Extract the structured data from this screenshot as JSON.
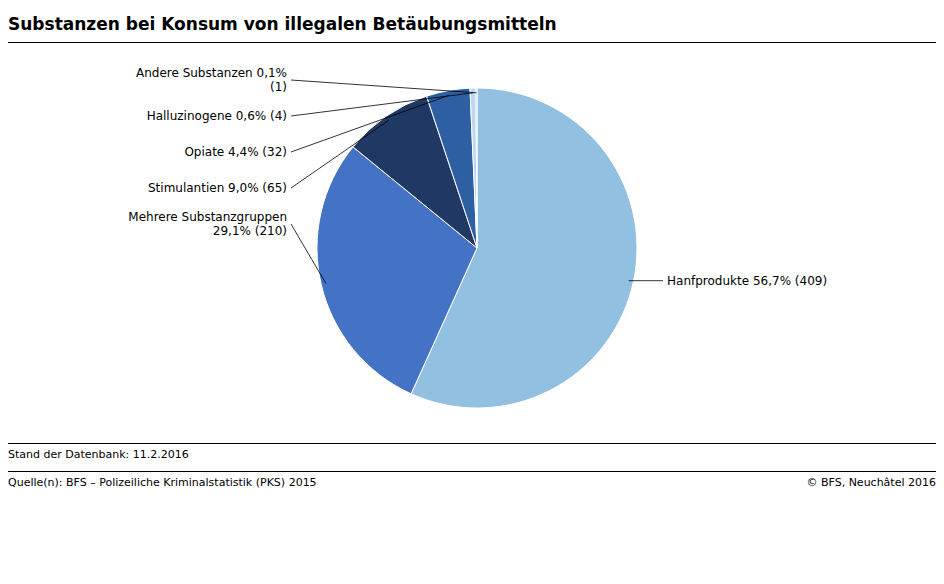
{
  "chart_data": {
    "type": "pie",
    "title": "Substanzen bei Konsum von illegalen Betäubungsmitteln",
    "categories": [
      "Hanfprodukte 56,7% (409)",
      "Mehrere Substanzgruppen\n29,1% (210)",
      "Stimulantien 9,0% (65)",
      "Opiate 4,4% (32)",
      "Halluzinogene 0,6% (4)",
      "Andere Substanzen 0,1%\n(1)"
    ],
    "values": [
      56.7,
      29.1,
      9.0,
      4.4,
      0.6,
      0.1
    ],
    "colors": [
      "#92C0E0",
      "#4472C4",
      "#1F3864",
      "#2E5FA3",
      "#BDD7EE",
      "#70A9D6"
    ],
    "annotations": [
      "Stand der Datenbank: 11.2.2016",
      "Quelle(n): BFS – Polizeiliche Kriminalstatistik (PKS) 2015",
      "© BFS, Neuchâtel 2016"
    ]
  }
}
